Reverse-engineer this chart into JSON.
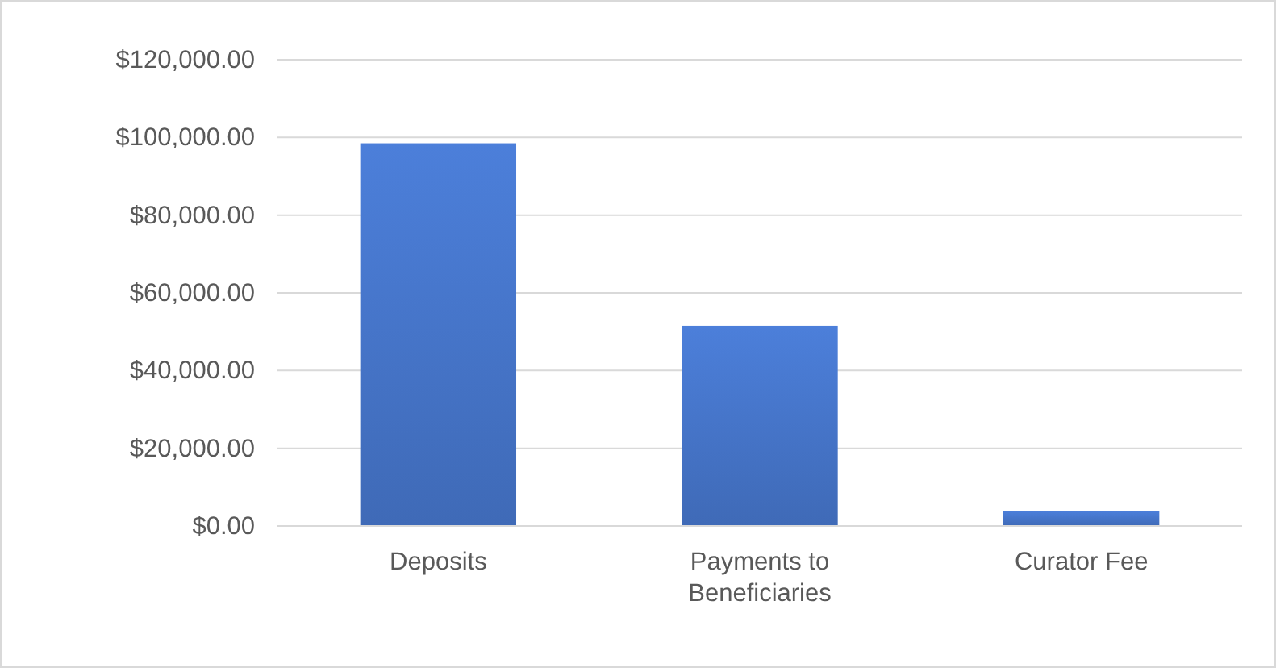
{
  "chart_data": {
    "type": "bar",
    "categories": [
      "Deposits",
      "Payments to Beneficiaries",
      "Curator Fee"
    ],
    "values": [
      98500,
      51500,
      3800
    ],
    "color": "#4472c4",
    "ylim": [
      0,
      120000
    ],
    "yticks": [
      {
        "value": 0,
        "label": "$0.00"
      },
      {
        "value": 20000,
        "label": "$20,000.00"
      },
      {
        "value": 40000,
        "label": "$40,000.00"
      },
      {
        "value": 60000,
        "label": "$60,000.00"
      },
      {
        "value": 80000,
        "label": "$80,000.00"
      },
      {
        "value": 100000,
        "label": "$100,000.00"
      },
      {
        "value": 120000,
        "label": "$120,000.00"
      }
    ],
    "grid": "y"
  }
}
